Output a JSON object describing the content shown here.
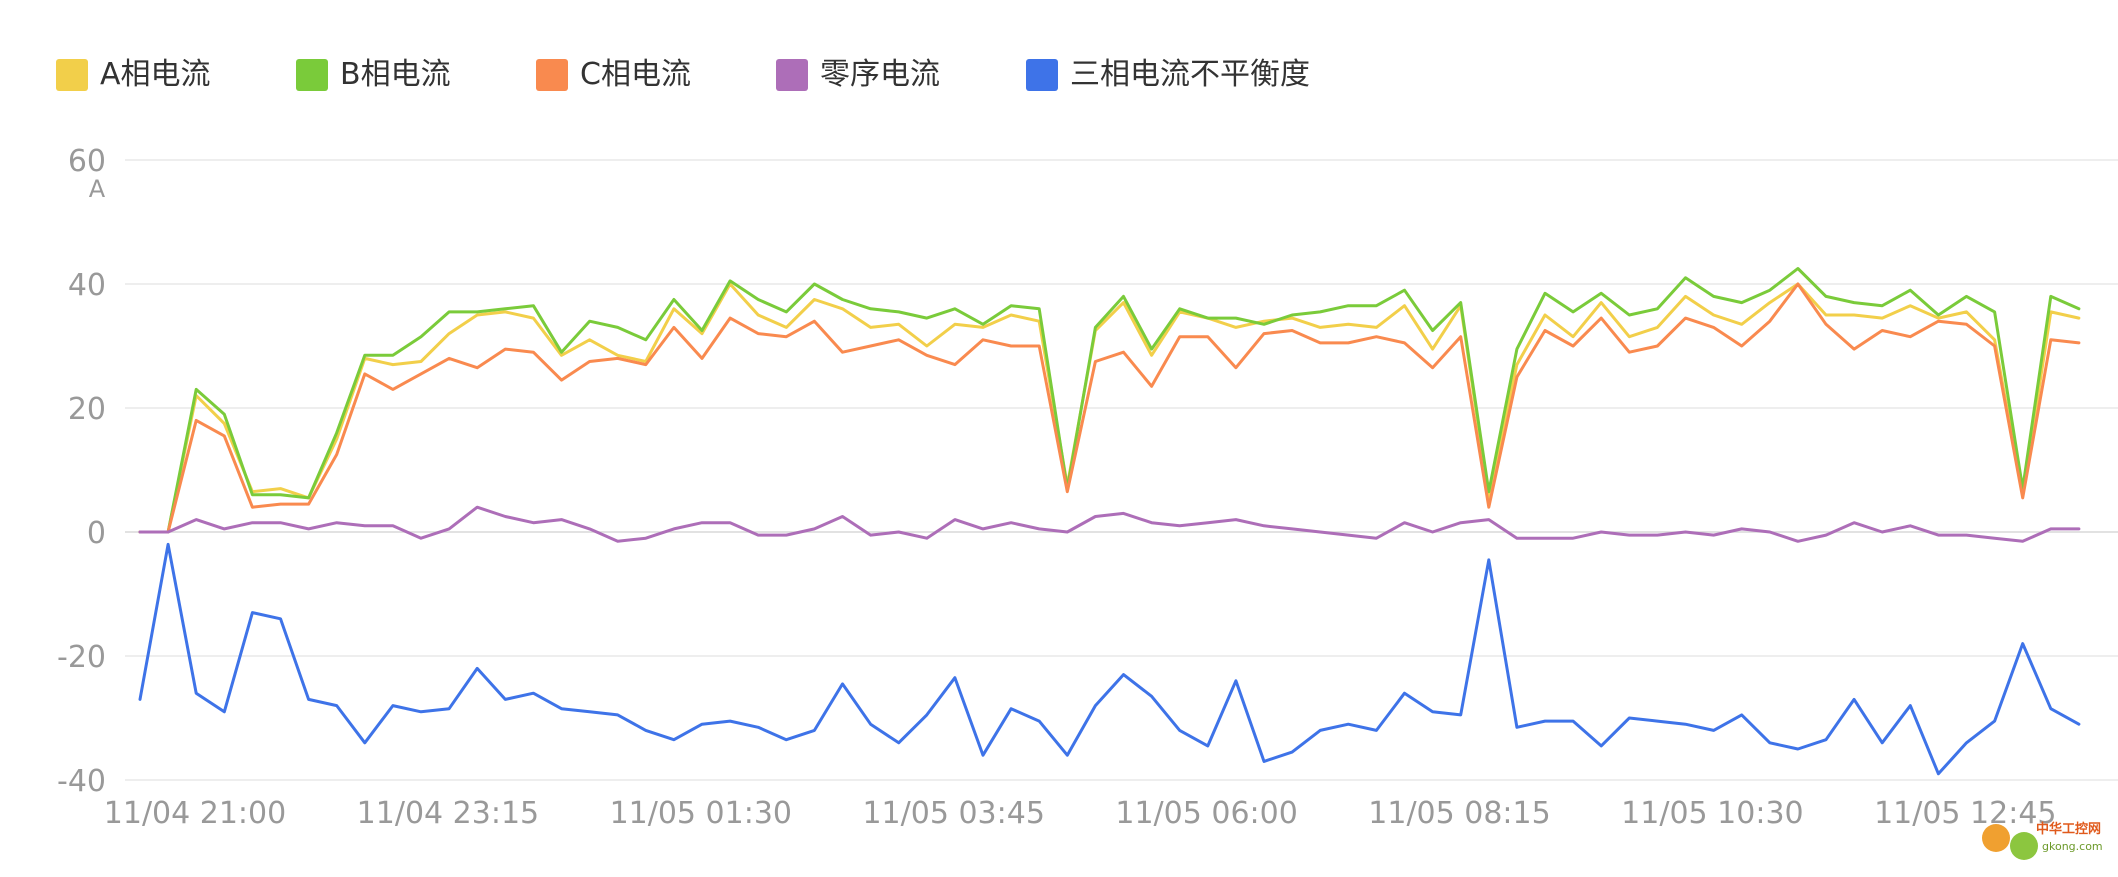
{
  "chart_data": {
    "type": "line",
    "title": "",
    "xlabel": "",
    "ylabel": "",
    "y_unit": "A",
    "ylim": [
      -40,
      60
    ],
    "yticks": [
      -40,
      -20,
      0,
      20,
      40,
      60
    ],
    "grid": true,
    "legend_position": "top-left",
    "x_tick_labels": [
      "11/04 21:00",
      "11/04 23:15",
      "11/05 01:30",
      "11/05 03:45",
      "11/05 06:00",
      "11/05 08:15",
      "11/05 10:30",
      "11/05 12:45"
    ],
    "x_tick_every": 9,
    "series": [
      {
        "name": "A相电流",
        "color": "#f2cf4a",
        "values": [
          0,
          0,
          22,
          17.5,
          6.5,
          7,
          5.5,
          15,
          28,
          27,
          27.5,
          32,
          35,
          35.5,
          34.5,
          28.5,
          31,
          28.5,
          27.5,
          36,
          32,
          40,
          35,
          33,
          37.5,
          36,
          33,
          33.5,
          30,
          33.5,
          33,
          35,
          34,
          7.5,
          32.5,
          37,
          28.5,
          35.5,
          34.5,
          33,
          34,
          34.5,
          33,
          33.5,
          33,
          36.5,
          29.5,
          36.5,
          5.5,
          27,
          35,
          31.5,
          37,
          31.5,
          33,
          38,
          35,
          33.5,
          37,
          40,
          35,
          35,
          34.5,
          36.5,
          34.5,
          35.5,
          31,
          6,
          35.5,
          34.5
        ]
      },
      {
        "name": "B相电流",
        "color": "#7acb3a",
        "values": [
          0,
          0,
          23,
          19,
          6,
          6,
          5.5,
          16,
          28.5,
          28.5,
          31.5,
          35.5,
          35.5,
          36,
          36.5,
          29,
          34,
          33,
          31,
          37.5,
          32.5,
          40.5,
          37.5,
          35.5,
          40,
          37.5,
          36,
          35.5,
          34.5,
          36,
          33.5,
          36.5,
          36,
          7,
          33,
          38,
          29.5,
          36,
          34.5,
          34.5,
          33.5,
          35,
          35.5,
          36.5,
          36.5,
          39,
          32.5,
          37,
          6.5,
          29.5,
          38.5,
          35.5,
          38.5,
          35,
          36,
          41,
          38,
          37,
          39,
          42.5,
          38,
          37,
          36.5,
          39,
          35,
          38,
          35.5,
          7,
          38,
          36
        ]
      },
      {
        "name": "C相电流",
        "color": "#f98a4f",
        "values": [
          0,
          0,
          18,
          15.5,
          4,
          4.5,
          4.5,
          12.5,
          25.5,
          23,
          25.5,
          28,
          26.5,
          29.5,
          29,
          24.5,
          27.5,
          28,
          27,
          33,
          28,
          34.5,
          32,
          31.5,
          34,
          29,
          30,
          31,
          28.5,
          27,
          31,
          30,
          30,
          6.5,
          27.5,
          29,
          23.5,
          31.5,
          31.5,
          26.5,
          32,
          32.5,
          30.5,
          30.5,
          31.5,
          30.5,
          26.5,
          31.5,
          4,
          25,
          32.5,
          30,
          34.5,
          29,
          30,
          34.5,
          33,
          30,
          34,
          40,
          33.5,
          29.5,
          32.5,
          31.5,
          34,
          33.5,
          30,
          5.5,
          31,
          30.5
        ]
      },
      {
        "name": "零序电流",
        "color": "#ad6eb8",
        "values": [
          0,
          0,
          2,
          0.5,
          1.5,
          1.5,
          0.5,
          1.5,
          1,
          1,
          -1,
          0.5,
          4,
          2.5,
          1.5,
          2,
          0.5,
          -1.5,
          -1,
          0.5,
          1.5,
          1.5,
          -0.5,
          -0.5,
          0.5,
          2.5,
          -0.5,
          0,
          -1,
          2,
          0.5,
          1.5,
          0.5,
          0,
          2.5,
          3,
          1.5,
          1,
          1.5,
          2,
          1,
          0.5,
          0,
          -0.5,
          -1,
          1.5,
          0,
          1.5,
          2,
          -1,
          -1,
          -1,
          0,
          -0.5,
          -0.5,
          0,
          -0.5,
          0.5,
          0,
          -1.5,
          -0.5,
          1.5,
          0,
          1,
          -0.5,
          -0.5,
          -1,
          -1.5,
          0.5,
          0.5
        ]
      },
      {
        "name": "三相电流不平衡度",
        "color": "#3e73e8",
        "values": [
          -27,
          -2,
          -26,
          -29,
          -13,
          -14,
          -27,
          -28,
          -34,
          -28,
          -29,
          -28.5,
          -22,
          -27,
          -26,
          -28.5,
          -29,
          -29.5,
          -32,
          -33.5,
          -31,
          -30.5,
          -31.5,
          -33.5,
          -32,
          -24.5,
          -31,
          -34,
          -29.5,
          -23.5,
          -36,
          -28.5,
          -30.5,
          -36,
          -28,
          -23,
          -26.5,
          -32,
          -34.5,
          -24,
          -37,
          -35.5,
          -32,
          -31,
          -32,
          -26,
          -29,
          -29.5,
          -4.5,
          -31.5,
          -30.5,
          -30.5,
          -34.5,
          -30,
          -30.5,
          -31,
          -32,
          -29.5,
          -34,
          -35,
          -33.5,
          -27,
          -34,
          -28,
          -39,
          -34,
          -30.5,
          -18,
          -28.5,
          -31
        ]
      }
    ]
  },
  "watermark": {
    "brand_text": "中华工控网",
    "site_text": "gkong.com"
  }
}
